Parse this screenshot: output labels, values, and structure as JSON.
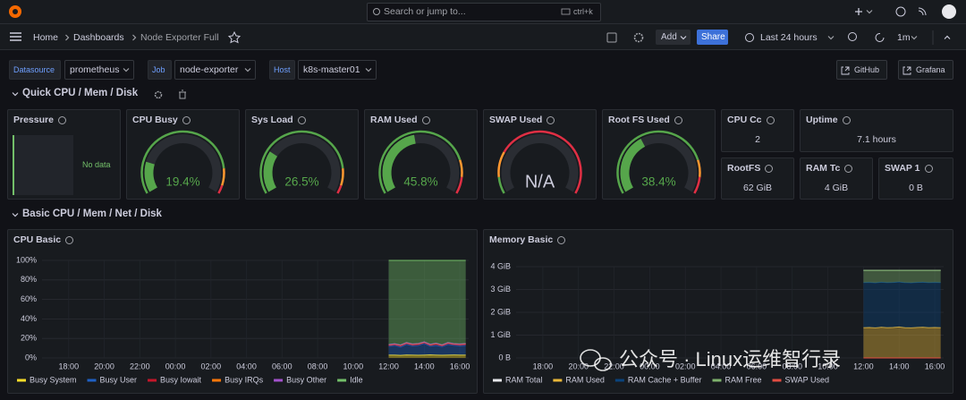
{
  "topbar": {
    "search": "Search or jump to...",
    "shortcut": "ctrl+k"
  },
  "nav": {
    "breadcrumbs": [
      "Home",
      "Dashboards",
      "Node Exporter Full"
    ],
    "add": "Add",
    "share": "Share",
    "time_range": "Last 24 hours",
    "refresh": "1m"
  },
  "variables": [
    {
      "label": "Datasource",
      "value": "prometheus"
    },
    {
      "label": "Job",
      "value": "node-exporter"
    },
    {
      "label": "Host",
      "value": "k8s-master01"
    }
  ],
  "links": [
    "GitHub",
    "Grafana"
  ],
  "rows": [
    "Quick CPU / Mem / Disk",
    "Basic CPU / Mem / Net / Disk"
  ],
  "pressure": {
    "title": "Pressure",
    "text": "No data"
  },
  "gauges": {
    "range": [
      0,
      100
    ],
    "threshold_colors": [
      "#56a64b",
      "#ff9830",
      "#e02f44"
    ],
    "items": [
      {
        "title": "CPU Busy",
        "value": 19.4,
        "value_label": "19.4%",
        "thresholds": [
          0,
          85,
          95
        ]
      },
      {
        "title": "Sys Load",
        "value": 26.5,
        "value_label": "26.5%",
        "thresholds": [
          0,
          85,
          95
        ]
      },
      {
        "title": "RAM Used",
        "value": 45.8,
        "value_label": "45.8%",
        "thresholds": [
          0,
          80,
          90
        ]
      },
      {
        "title": "SWAP Used",
        "value": null,
        "value_label": "N/A",
        "thresholds": [
          0,
          10,
          25
        ]
      },
      {
        "title": "Root FS Used",
        "value": 38.4,
        "value_label": "38.4%",
        "thresholds": [
          0,
          80,
          90
        ]
      }
    ]
  },
  "stats": [
    {
      "title": "CPU Cc",
      "value": "2"
    },
    {
      "title": "Uptime",
      "value": "7.1 hours"
    },
    {
      "title": "RootFS",
      "value": "62 GiB"
    },
    {
      "title": "RAM Tc",
      "value": "4 GiB"
    },
    {
      "title": "SWAP 1",
      "value": "0 B"
    }
  ],
  "chart_data": [
    {
      "type": "area",
      "title": "CPU Basic",
      "x": [
        "12:00",
        "12:20",
        "12:40",
        "13:00",
        "13:20",
        "13:40",
        "14:00",
        "14:20",
        "14:40",
        "15:00",
        "15:20",
        "15:40",
        "16:00",
        "16:20"
      ],
      "xlim": [
        "16:30",
        "16:30"
      ],
      "xticks": [
        "18:00",
        "20:00",
        "22:00",
        "00:00",
        "02:00",
        "04:00",
        "06:00",
        "08:00",
        "10:00",
        "12:00",
        "14:00",
        "16:00"
      ],
      "ylim": [
        0,
        100
      ],
      "yticks": [
        {
          "value": 0,
          "label": "0%"
        },
        {
          "value": 20,
          "label": "20%"
        },
        {
          "value": 40,
          "label": "40%"
        },
        {
          "value": 60,
          "label": "60%"
        },
        {
          "value": 80,
          "label": "80%"
        },
        {
          "value": 100,
          "label": "100%"
        }
      ],
      "grid": true,
      "series": [
        {
          "name": "Busy System",
          "color": "#fade2a",
          "stack": true,
          "values": [
            3,
            3,
            2.8,
            3.1,
            3,
            2.9,
            3,
            3.2,
            3,
            2.9,
            3,
            3.1,
            3,
            3
          ]
        },
        {
          "name": "Busy User",
          "color": "#1f60c4",
          "stack": true,
          "values": [
            9,
            10,
            8.5,
            11,
            9.5,
            10,
            12,
            9,
            10,
            8.8,
            11,
            10,
            9.5,
            10
          ]
        },
        {
          "name": "Busy Iowait",
          "color": "#c4162a",
          "stack": true,
          "values": [
            1,
            0.8,
            1.2,
            0.9,
            1,
            1.1,
            0.7,
            1,
            1.3,
            0.9,
            1,
            0.8,
            1,
            1
          ]
        },
        {
          "name": "Busy IRQs",
          "color": "#ff780a",
          "stack": true,
          "values": [
            0.5,
            0.5,
            0.5,
            0.5,
            0.5,
            0.5,
            0.5,
            0.5,
            0.5,
            0.5,
            0.5,
            0.5,
            0.5,
            0.5
          ]
        },
        {
          "name": "Busy Other",
          "color": "#a352cc",
          "stack": true,
          "values": [
            0.3,
            0.3,
            0.3,
            0.3,
            0.3,
            0.3,
            0.3,
            0.3,
            0.3,
            0.3,
            0.3,
            0.3,
            0.3,
            0.3
          ]
        },
        {
          "name": "Idle",
          "color": "#73bf69",
          "stack": true,
          "values": [
            86.2,
            85.4,
            86.7,
            84.2,
            85.7,
            85.2,
            83.5,
            86,
            84.9,
            86.6,
            84.2,
            85.3,
            85.7,
            85.2
          ]
        }
      ]
    },
    {
      "type": "area",
      "title": "Memory Basic",
      "x": [
        "12:00",
        "12:20",
        "12:40",
        "13:00",
        "13:20",
        "13:40",
        "14:00",
        "14:20",
        "14:40",
        "15:00",
        "15:20",
        "15:40",
        "16:00",
        "16:20"
      ],
      "xlim": [
        "16:30",
        "16:30"
      ],
      "xticks": [
        "18:00",
        "20:00",
        "22:00",
        "00:00",
        "02:00",
        "04:00",
        "06:00",
        "08:00",
        "10:00",
        "12:00",
        "14:00",
        "16:00"
      ],
      "ylim": [
        0,
        4
      ],
      "yticks": [
        {
          "value": 0,
          "label": "0 B"
        },
        {
          "value": 1,
          "label": "1 GiB"
        },
        {
          "value": 2,
          "label": "2 GiB"
        },
        {
          "value": 3,
          "label": "3 GiB"
        },
        {
          "value": 4,
          "label": "4 GiB"
        }
      ],
      "grid": true,
      "series": [
        {
          "name": "RAM Total",
          "color": "#e8e8ec",
          "stack": false,
          "values": [
            3.84,
            3.84,
            3.84,
            3.84,
            3.84,
            3.84,
            3.84,
            3.84,
            3.84,
            3.84,
            3.84,
            3.84,
            3.84,
            3.84
          ]
        },
        {
          "name": "RAM Used",
          "color": "#eab839",
          "stack": true,
          "values": [
            1.33,
            1.34,
            1.32,
            1.35,
            1.33,
            1.34,
            1.36,
            1.33,
            1.32,
            1.34,
            1.35,
            1.33,
            1.34,
            1.33
          ]
        },
        {
          "name": "RAM Cache + Buffer",
          "color": "#0a437c",
          "stack": true,
          "values": [
            1.97,
            1.97,
            1.97,
            1.97,
            1.97,
            1.97,
            1.97,
            1.97,
            1.97,
            1.97,
            1.97,
            1.97,
            1.97,
            1.97
          ]
        },
        {
          "name": "RAM Free",
          "color": "#7eb26d",
          "stack": true,
          "values": [
            0.54,
            0.53,
            0.55,
            0.52,
            0.54,
            0.53,
            0.51,
            0.54,
            0.55,
            0.53,
            0.52,
            0.54,
            0.53,
            0.54
          ]
        },
        {
          "name": "SWAP Used",
          "color": "#e24d42",
          "stack": false,
          "values": [
            0,
            0,
            0,
            0,
            0,
            0,
            0,
            0,
            0,
            0,
            0,
            0,
            0,
            0
          ]
        }
      ]
    }
  ],
  "watermark": "公众号 · Linux运维智行录"
}
